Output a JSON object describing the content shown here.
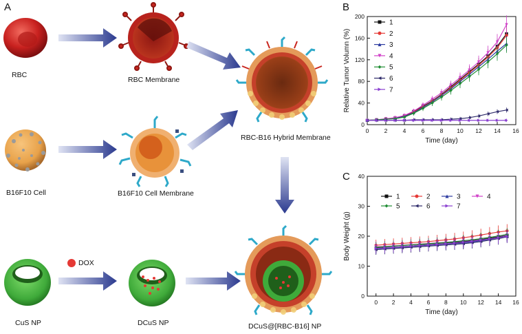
{
  "panels": {
    "a": {
      "label": "A",
      "captions": {
        "rbc": "RBC",
        "rbc_membrane": "RBC Membrane",
        "b16_cell": "B16F10 Cell",
        "b16_membrane": "B16F10 Cell Membrane",
        "hybrid": "RBC-B16 Hybrid Membrane",
        "cus": "CuS NP",
        "dox": "DOX",
        "dcus": "DCuS NP",
        "final": "DCuS@[RBC-B16] NP"
      },
      "colors": {
        "arrow": "#2b3a8f",
        "rbc": "#c8211f",
        "b16": "#e8a24a",
        "cus": "#3faa3a",
        "dox": "#e53935",
        "receptor": "#2ea9c9"
      }
    },
    "b": {
      "label": "B"
    },
    "c": {
      "label": "C"
    }
  },
  "chart_data": [
    {
      "type": "line",
      "panel": "B",
      "title": "",
      "xlabel": "Time (day)",
      "ylabel": "Relative Tumor Volumn (%)",
      "xlim": [
        0,
        16
      ],
      "ylim": [
        0,
        200
      ],
      "xticks": [
        0,
        2,
        4,
        6,
        8,
        10,
        12,
        14,
        16
      ],
      "yticks": [
        0,
        40,
        80,
        120,
        160,
        200
      ],
      "legend_position": "top-left",
      "x": [
        0,
        1,
        2,
        3,
        4,
        5,
        6,
        7,
        8,
        9,
        10,
        11,
        12,
        13,
        14,
        15
      ],
      "series": [
        {
          "name": "1",
          "color": "#111111",
          "marker": "square",
          "values": [
            8,
            9,
            10,
            12,
            16,
            24,
            34,
            44,
            56,
            70,
            84,
            98,
            112,
            127,
            145,
            168
          ]
        },
        {
          "name": "2",
          "color": "#e53935",
          "marker": "circle",
          "values": [
            8,
            9,
            10,
            12,
            15,
            23,
            33,
            43,
            55,
            68,
            82,
            96,
            110,
            125,
            142,
            165
          ]
        },
        {
          "name": "3",
          "color": "#2b3a9f",
          "marker": "triangle-up",
          "values": [
            8,
            9,
            10,
            12,
            15,
            22,
            32,
            42,
            54,
            66,
            80,
            93,
            107,
            121,
            136,
            150
          ]
        },
        {
          "name": "4",
          "color": "#d040c8",
          "marker": "triangle-down",
          "values": [
            8,
            9,
            11,
            13,
            17,
            25,
            36,
            47,
            59,
            73,
            87,
            101,
            116,
            133,
            153,
            185
          ]
        },
        {
          "name": "5",
          "color": "#1e8c32",
          "marker": "diamond",
          "values": [
            8,
            9,
            10,
            11,
            14,
            21,
            30,
            40,
            51,
            63,
            76,
            89,
            102,
            116,
            131,
            147
          ]
        },
        {
          "name": "6",
          "color": "#2e2a6a",
          "marker": "triangle-left",
          "values": [
            8,
            8,
            8,
            8,
            8,
            9,
            9,
            9,
            9,
            10,
            11,
            13,
            16,
            20,
            24,
            27
          ]
        },
        {
          "name": "7",
          "color": "#8a3fd0",
          "marker": "triangle-right",
          "values": [
            8,
            8,
            8,
            8,
            8,
            8,
            8,
            8,
            8,
            8,
            8,
            8,
            8,
            8,
            8,
            8
          ]
        }
      ]
    },
    {
      "type": "line",
      "panel": "C",
      "title": "",
      "xlabel": "Time (day)",
      "ylabel": "Body Weight (g)",
      "xlim": [
        -1,
        16
      ],
      "ylim": [
        0,
        40
      ],
      "xticks": [
        0,
        2,
        4,
        6,
        8,
        10,
        12,
        14,
        16
      ],
      "yticks": [
        0,
        10,
        20,
        30,
        40
      ],
      "legend_position": "top",
      "x": [
        0,
        1,
        2,
        3,
        4,
        5,
        6,
        7,
        8,
        9,
        10,
        11,
        12,
        13,
        14,
        15
      ],
      "series": [
        {
          "name": "1",
          "color": "#111111",
          "marker": "square",
          "values": [
            16.0,
            16.2,
            16.3,
            16.5,
            16.7,
            17.0,
            17.2,
            17.4,
            17.6,
            17.9,
            18.2,
            18.5,
            18.9,
            19.3,
            19.8,
            20.3
          ]
        },
        {
          "name": "2",
          "color": "#e53935",
          "marker": "circle",
          "values": [
            17.0,
            17.2,
            17.4,
            17.6,
            17.8,
            18.0,
            18.2,
            18.5,
            18.8,
            19.1,
            19.5,
            19.9,
            20.4,
            20.9,
            21.4,
            21.8
          ]
        },
        {
          "name": "3",
          "color": "#2b3a9f",
          "marker": "triangle-up",
          "values": [
            15.8,
            16.0,
            16.2,
            16.4,
            16.6,
            16.8,
            17.0,
            17.2,
            17.4,
            17.6,
            17.8,
            18.1,
            18.5,
            19.0,
            19.5,
            20.0
          ]
        },
        {
          "name": "4",
          "color": "#d040c8",
          "marker": "triangle-down",
          "values": [
            16.5,
            16.6,
            16.8,
            17.0,
            17.2,
            17.4,
            17.6,
            17.8,
            18.0,
            18.2,
            18.4,
            18.7,
            19.1,
            19.6,
            20.0,
            20.4
          ]
        },
        {
          "name": "5",
          "color": "#1e8c32",
          "marker": "diamond",
          "values": [
            16.3,
            16.5,
            16.7,
            16.9,
            17.1,
            17.3,
            17.5,
            17.7,
            17.9,
            18.2,
            18.5,
            18.8,
            19.2,
            19.6,
            20.1,
            20.6
          ]
        },
        {
          "name": "6",
          "color": "#2e2a6a",
          "marker": "triangle-left",
          "values": [
            15.5,
            15.7,
            15.9,
            16.1,
            16.3,
            16.5,
            16.7,
            16.9,
            17.1,
            17.3,
            17.5,
            17.8,
            18.2,
            18.7,
            19.2,
            19.8
          ]
        },
        {
          "name": "7",
          "color": "#8a3fd0",
          "marker": "triangle-right",
          "values": [
            15.9,
            16.1,
            16.3,
            16.5,
            16.7,
            16.9,
            17.1,
            17.3,
            17.5,
            17.7,
            18.0,
            18.3,
            18.7,
            19.1,
            19.5,
            19.9
          ]
        }
      ]
    }
  ]
}
